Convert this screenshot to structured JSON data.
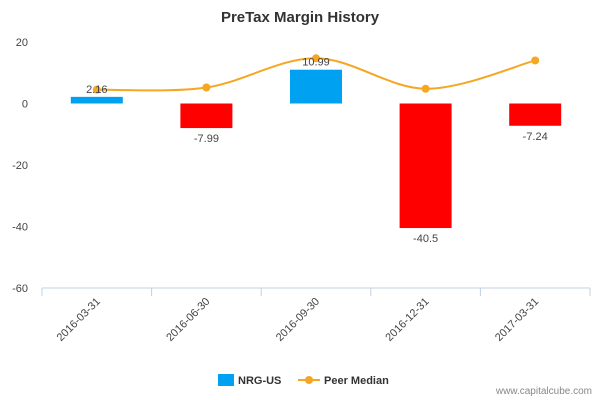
{
  "chart_data": {
    "type": "bar",
    "title": "PreTax Margin History",
    "categories": [
      "2016-03-31",
      "2016-06-30",
      "2016-09-30",
      "2016-12-31",
      "2017-03-31"
    ],
    "series": [
      {
        "name": "NRG-US",
        "kind": "bar",
        "values": [
          2.16,
          -7.99,
          10.99,
          -40.5,
          -7.24
        ],
        "data_labels": [
          "2.16",
          "-7.99",
          "10.99",
          "-40.5",
          "-7.24"
        ],
        "positive_color": "#00a1f1",
        "negative_color": "#ff0000"
      },
      {
        "name": "Peer Median",
        "kind": "line",
        "values": [
          4.5,
          5.2,
          14.7,
          4.8,
          14.0
        ],
        "color": "#f5a623"
      }
    ],
    "yticks": [
      "20",
      "0",
      "-20",
      "-40",
      "-60"
    ],
    "ytick_values": [
      20,
      0,
      -20,
      -40,
      -60
    ],
    "ylim": [
      -60,
      20
    ],
    "grid": false,
    "legend_position": "bottom"
  },
  "credit": "www.capitalcube.com"
}
